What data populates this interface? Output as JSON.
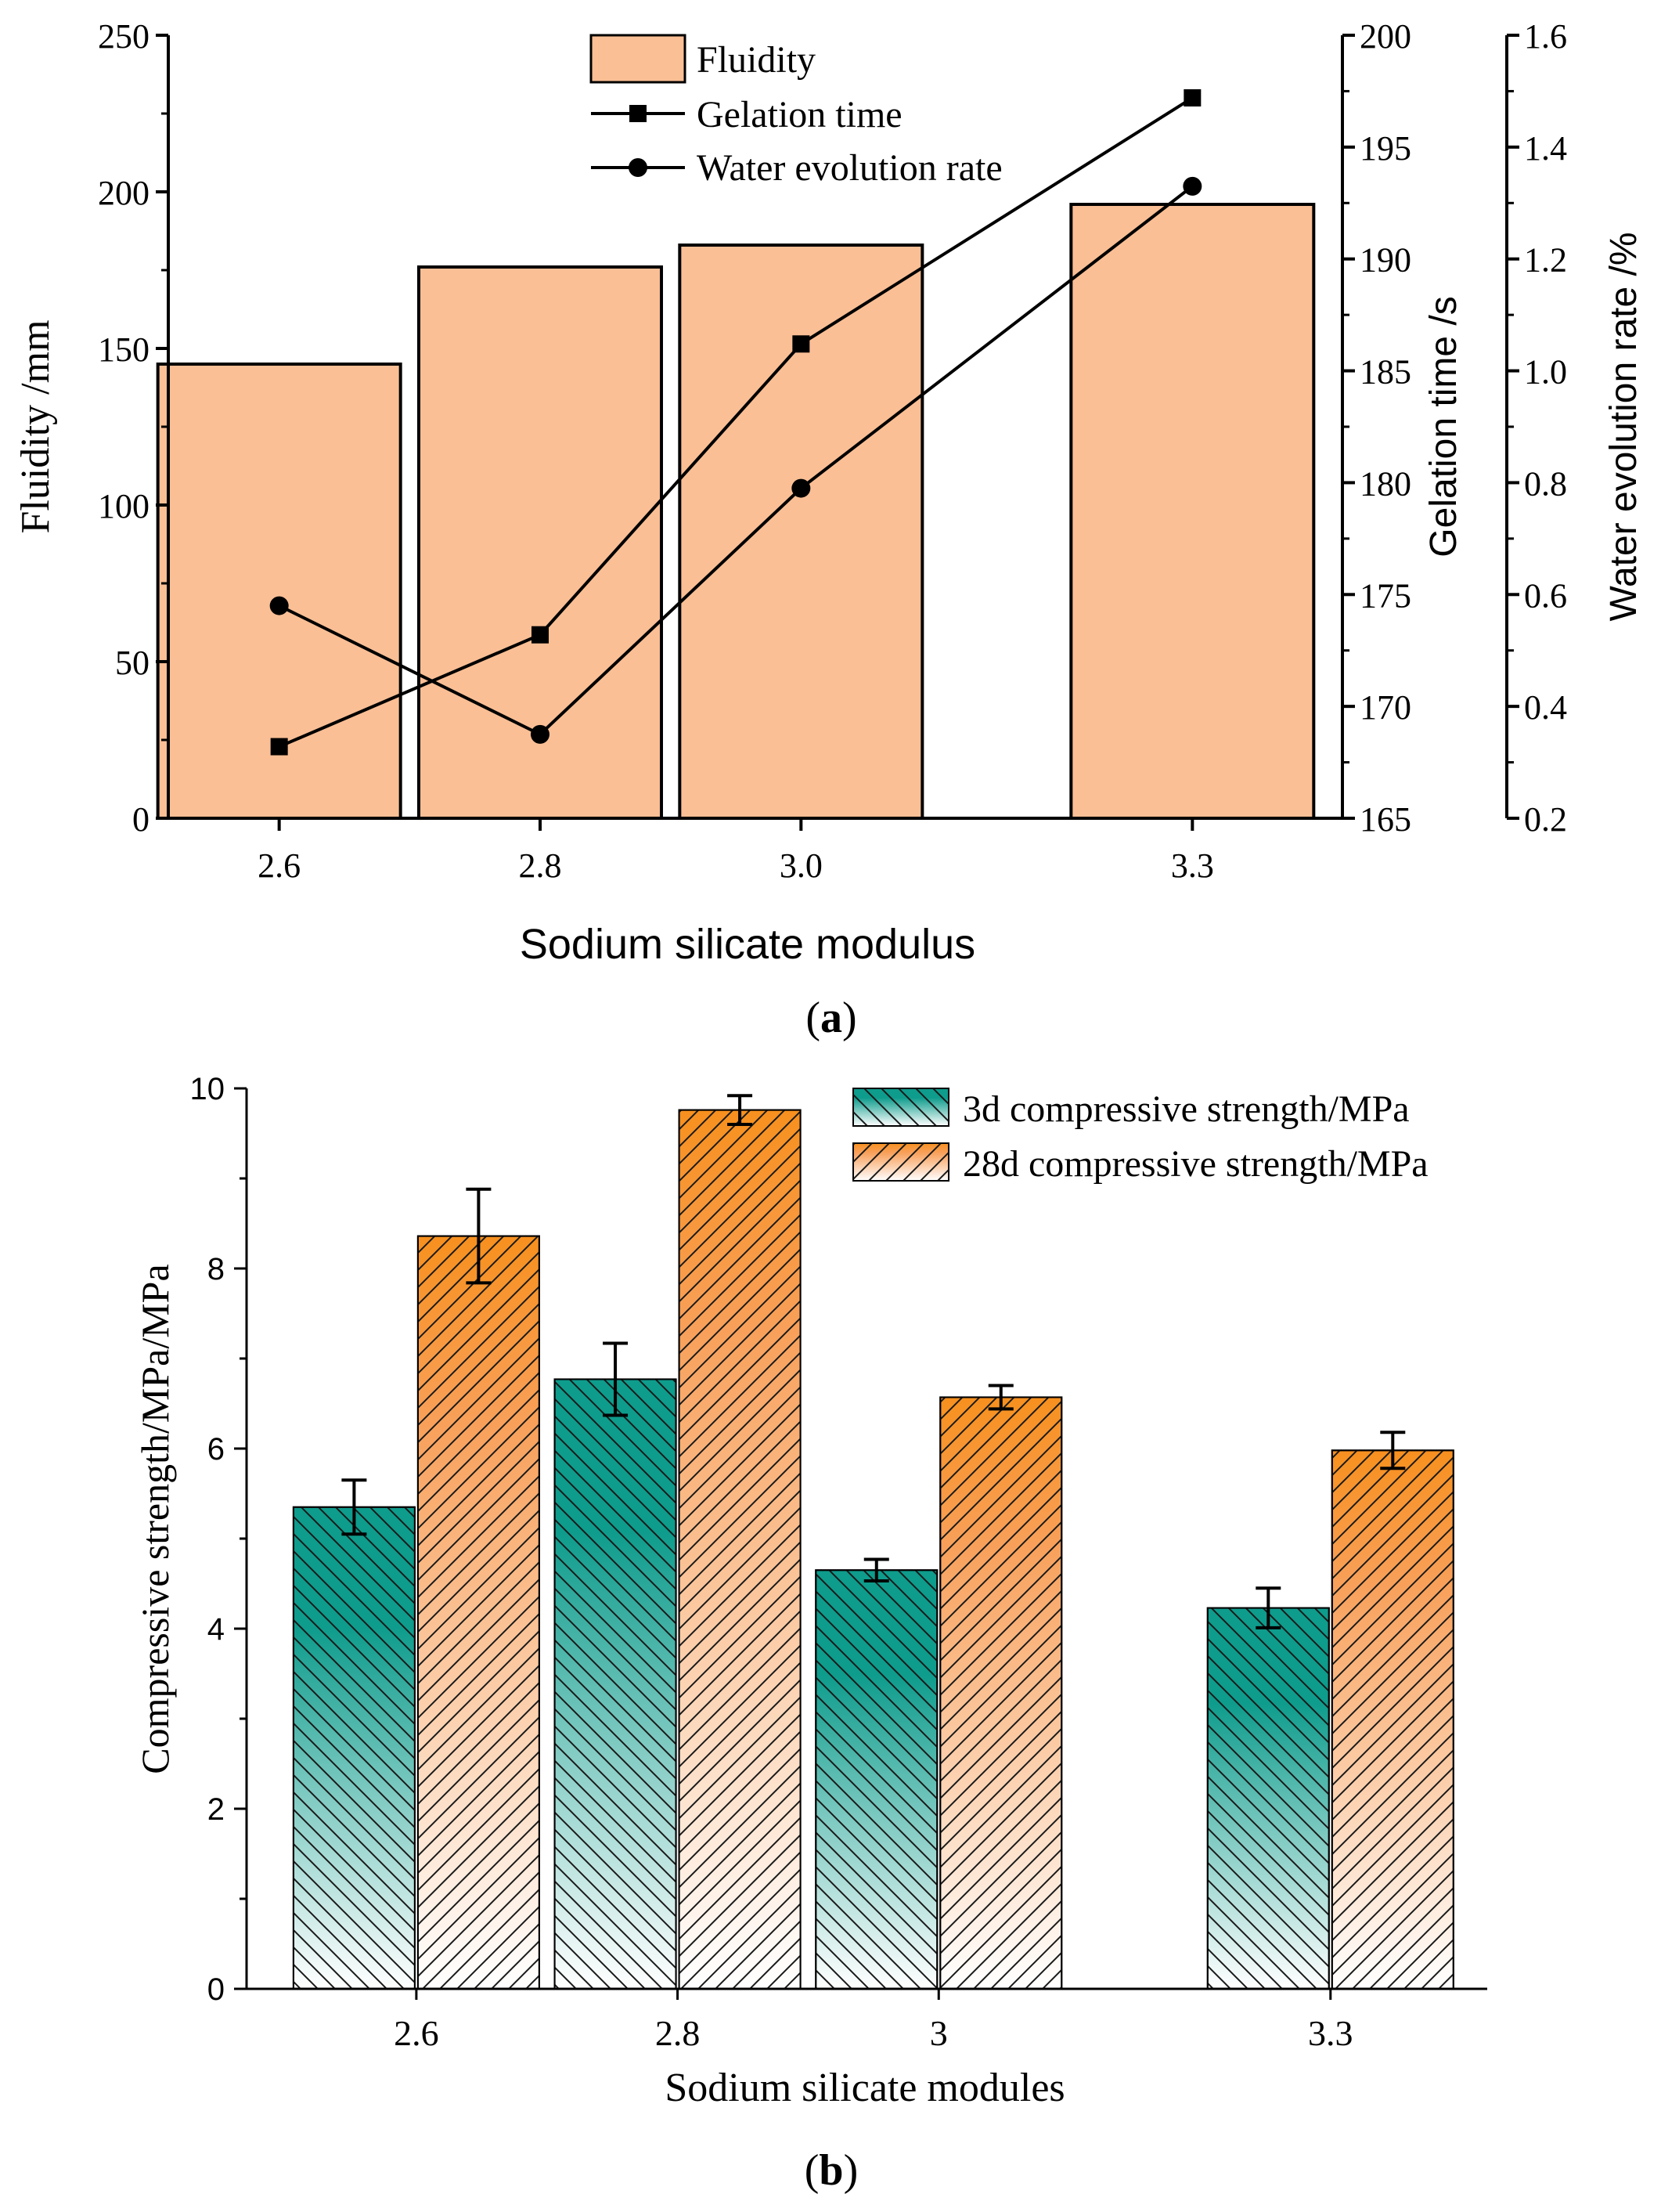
{
  "chart_data": [
    {
      "type": "bar+line",
      "panel_label": "(a)",
      "panel_letter": "a",
      "xlabel": "Sodium silicate modulus",
      "categories": [
        "2.6",
        "2.8",
        "3.0",
        "3.3"
      ],
      "category_positions": [
        2.6,
        2.8,
        3.0,
        3.3
      ],
      "xlim": [
        2.515,
        3.415
      ],
      "left_axis": {
        "label": "Fluidity /mm",
        "ylim": [
          0,
          250
        ],
        "ticks": [
          "0",
          "50",
          "100",
          "150",
          "200",
          "250"
        ],
        "tick_values": [
          0,
          50,
          100,
          150,
          200,
          250
        ]
      },
      "right_axis_1": {
        "label": "Gelation time /s",
        "ylim": [
          165,
          200
        ],
        "ticks": [
          "165",
          "170",
          "175",
          "180",
          "185",
          "190",
          "195",
          "200"
        ],
        "tick_values": [
          165,
          170,
          175,
          180,
          185,
          190,
          195,
          200
        ]
      },
      "right_axis_2": {
        "label": "Water evolution rate /%",
        "ylim": [
          0.2,
          1.6
        ],
        "ticks": [
          "0.2",
          "0.4",
          "0.6",
          "0.8",
          "1.0",
          "1.2",
          "1.4",
          "1.6"
        ],
        "tick_values": [
          0.2,
          0.4,
          0.6,
          0.8,
          1.0,
          1.2,
          1.4,
          1.6
        ]
      },
      "bar_color": "#fbbf95",
      "series": [
        {
          "name": "Fluidity",
          "kind": "bar",
          "axis": "left",
          "values": [
            145,
            176,
            183,
            196
          ]
        },
        {
          "name": "Gelation time",
          "kind": "line",
          "marker": "square",
          "axis": "right_1",
          "values": [
            168.2,
            173.2,
            186.2,
            197.2
          ]
        },
        {
          "name": "Water evolution rate",
          "kind": "line",
          "marker": "circle",
          "axis": "right_2",
          "values": [
            0.58,
            0.35,
            0.79,
            1.33
          ]
        }
      ],
      "legend": [
        "Fluidity",
        "Gelation time",
        "Water evolution rate"
      ],
      "legend_position": "top-center"
    },
    {
      "type": "bar",
      "panel_label": "(b)",
      "panel_letter": "b",
      "xlabel": "Sodium silicate modules",
      "ylabel": "Compressive strength/MPa/MPa",
      "categories": [
        "2.6",
        "2.8",
        "3",
        "3.3"
      ],
      "category_positions": [
        2.6,
        2.8,
        3.0,
        3.3
      ],
      "xlim": [
        2.47,
        3.42
      ],
      "ylim": [
        0,
        10
      ],
      "yticks": [
        "0",
        "2",
        "4",
        "6",
        "8",
        "10"
      ],
      "ytick_values": [
        0,
        2,
        4,
        6,
        8,
        10
      ],
      "series": [
        {
          "name": "3d compressive strength/MPa",
          "values": [
            5.35,
            6.77,
            4.65,
            4.23
          ],
          "errors": [
            0.3,
            0.4,
            0.12,
            0.22
          ],
          "color": "#0e9c8c",
          "hatch": "backslash"
        },
        {
          "name": "28d compressive strength/MPa",
          "values": [
            8.36,
            9.76,
            6.57,
            5.98
          ],
          "errors": [
            0.52,
            0.16,
            0.13,
            0.2
          ],
          "color": "#f7901e",
          "hatch": "slash"
        }
      ],
      "legend": [
        "3d compressive strength/MPa",
        "28d compressive strength/MPa"
      ],
      "legend_position": "top-right"
    }
  ]
}
